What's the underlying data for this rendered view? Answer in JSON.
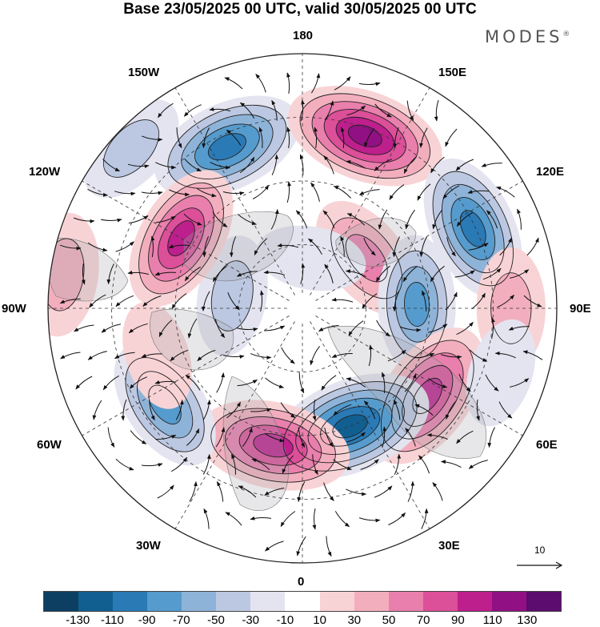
{
  "title": "Base 23/05/2025 00 UTC, valid 30/05/2025 00 UTC",
  "brand": "MODES",
  "brand_mark": "®",
  "longitude_labels": {
    "lon_180": "180",
    "lon_150e": "150E",
    "lon_120e": "120E",
    "lon_90e": "90E",
    "lon_60e": "60E",
    "lon_30e": "30E",
    "lon_0": "0",
    "lon_30w": "30W",
    "lon_60w": "60W",
    "lon_90w": "90W",
    "lon_120w": "120W",
    "lon_150w": "150W"
  },
  "vector_scale": {
    "value": "10"
  },
  "colorbar": {
    "colors": [
      "#0d3f63",
      "#115f91",
      "#2a7ab6",
      "#559bcd",
      "#8eb3d8",
      "#bcc8e2",
      "#e4e4f0",
      "#ffffff",
      "#f8d3d6",
      "#f3aebd",
      "#e97fac",
      "#dc4f99",
      "#bd1f8c",
      "#911083",
      "#5c0b6e"
    ],
    "ticks": [
      "-130",
      "-110",
      "-90",
      "-70",
      "-50",
      "-30",
      "-10",
      "10",
      "30",
      "50",
      "70",
      "90",
      "110",
      "130"
    ]
  },
  "anomaly_centers": [
    {
      "lon": -155,
      "r": 0.7,
      "value": -100
    },
    {
      "lon": 160,
      "r": 0.72,
      "value": 110
    },
    {
      "lon": 115,
      "r": 0.74,
      "value": -90
    },
    {
      "lon": 128,
      "r": 0.32,
      "value": 60
    },
    {
      "lon": 90,
      "r": 0.82,
      "value": 40
    },
    {
      "lon": 92,
      "r": 0.45,
      "value": -70
    },
    {
      "lon": 55,
      "r": 0.6,
      "value": 100
    },
    {
      "lon": 72,
      "r": 0.82,
      "value": -20
    },
    {
      "lon": 22,
      "r": 0.5,
      "value": -120
    },
    {
      "lon": -12,
      "r": 0.55,
      "value": 100
    },
    {
      "lon": -55,
      "r": 0.66,
      "value": -70
    },
    {
      "lon": -72,
      "r": 0.6,
      "value": 20
    },
    {
      "lon": -100,
      "r": 0.28,
      "value": -40
    },
    {
      "lon": -120,
      "r": 0.55,
      "value": 90
    },
    {
      "lon": -98,
      "r": 0.95,
      "value": 45
    },
    {
      "lon": -133,
      "r": 0.92,
      "value": -35
    },
    {
      "lon": 170,
      "r": 0.2,
      "value": -20
    }
  ]
}
